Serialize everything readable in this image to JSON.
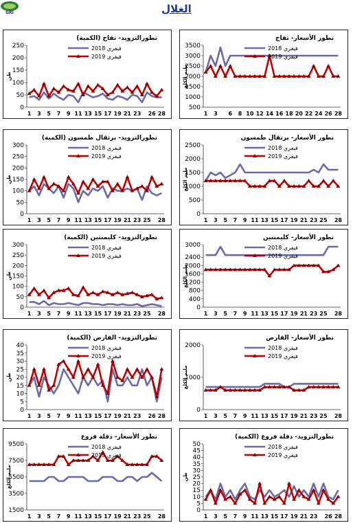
{
  "header": {
    "title": "الغلال",
    "logo_text": "GRI"
  },
  "colors": {
    "s2018": "#6a6aa8",
    "s2019": "#c00000",
    "marker2019": "#8b0000"
  },
  "chart_data": [
    {
      "id": "c1",
      "type": "line",
      "title": "تطورالتزويد- تفاح (الكمية)",
      "ylabel": "طن",
      "ylim": [
        0,
        250
      ],
      "yticks": [
        0,
        50,
        100,
        150,
        200,
        250
      ],
      "x": [
        1,
        2,
        3,
        4,
        5,
        6,
        7,
        8,
        9,
        10,
        11,
        12,
        13,
        14,
        15,
        16,
        17,
        18,
        19,
        20,
        21,
        22,
        23,
        24,
        25,
        26,
        27,
        28
      ],
      "xticks": [
        1,
        3,
        5,
        7,
        9,
        11,
        13,
        15,
        17,
        19,
        21,
        23,
        26,
        28
      ],
      "series": [
        {
          "name": "فيفري 2018",
          "values": [
            40,
            45,
            30,
            60,
            35,
            55,
            40,
            30,
            50,
            45,
            20,
            60,
            50,
            40,
            45,
            55,
            35,
            30,
            45,
            40,
            30,
            50,
            45,
            20,
            60,
            45,
            40,
            40
          ]
        },
        {
          "name": "فيفري 2019",
          "values": [
            55,
            70,
            45,
            95,
            45,
            75,
            60,
            85,
            70,
            65,
            95,
            50,
            85,
            65,
            90,
            75,
            50,
            60,
            90,
            65,
            80,
            60,
            85,
            50,
            95,
            60,
            45,
            70
          ]
        }
      ]
    },
    {
      "id": "c2",
      "type": "line",
      "title": "تطور الأسعار- تفاح",
      "ylabel": "مليم الكلغ",
      "ylim": [
        500,
        3500
      ],
      "yticks": [
        500,
        1000,
        1500,
        2000,
        2500,
        3000,
        3500
      ],
      "x": [
        1,
        2,
        3,
        4,
        5,
        6,
        7,
        8,
        9,
        10,
        11,
        12,
        13,
        14,
        15,
        16,
        17,
        18,
        19,
        20,
        21,
        22,
        23,
        24,
        25,
        26,
        27,
        28
      ],
      "xticks": [
        1,
        3,
        6,
        8,
        10,
        12,
        14,
        16,
        18,
        20,
        22,
        24,
        26,
        28
      ],
      "series": [
        {
          "name": "فيفري 2018",
          "values": [
            2200,
            3000,
            2500,
            3400,
            2500,
            3000,
            3000,
            3000,
            3000,
            3000,
            3000,
            3000,
            3000,
            3000,
            3000,
            3000,
            3000,
            3000,
            3000,
            3000,
            3000,
            3000,
            3000,
            3000,
            3000,
            3000,
            3000,
            3000
          ]
        },
        {
          "name": "فيفري 2019",
          "values": [
            2200,
            2500,
            2000,
            2500,
            2000,
            2500,
            2000,
            2000,
            2000,
            2000,
            2000,
            2000,
            2000,
            3000,
            2000,
            2000,
            2000,
            2000,
            2000,
            2000,
            2000,
            2000,
            2500,
            2000,
            2000,
            2500,
            2000,
            2000
          ]
        }
      ]
    },
    {
      "id": "c3",
      "type": "line",
      "title": "تطورالتزويد- برتقال طمسون (الكمية)",
      "ylabel": "طن",
      "ylim": [
        0,
        300
      ],
      "yticks": [
        0,
        50,
        100,
        150,
        200,
        250,
        300
      ],
      "x": [
        1,
        2,
        3,
        4,
        5,
        6,
        7,
        8,
        9,
        10,
        11,
        12,
        13,
        14,
        15,
        16,
        17,
        18,
        19,
        20,
        21,
        22,
        23,
        24,
        25,
        26,
        27,
        28
      ],
      "xticks": [
        1,
        3,
        5,
        7,
        9,
        11,
        13,
        15,
        17,
        19,
        21,
        23,
        25,
        28
      ],
      "series": [
        {
          "name": "فيفري 2018",
          "values": [
            100,
            120,
            80,
            130,
            110,
            90,
            120,
            70,
            130,
            110,
            50,
            100,
            80,
            110,
            100,
            120,
            70,
            110,
            100,
            100,
            110,
            100,
            110,
            60,
            120,
            90,
            80,
            90
          ]
        },
        {
          "name": "فيفري 2019",
          "values": [
            100,
            150,
            110,
            160,
            110,
            130,
            120,
            100,
            160,
            130,
            90,
            140,
            110,
            150,
            120,
            140,
            140,
            100,
            130,
            100,
            160,
            100,
            110,
            120,
            100,
            160,
            120,
            130
          ]
        }
      ]
    },
    {
      "id": "c4",
      "type": "line",
      "title": "تطور الأسعار- برتقال طمسون",
      "ylabel": "مليم الكلغ",
      "ylim": [
        0,
        2500
      ],
      "yticks": [
        0,
        500,
        1000,
        1500,
        2000,
        2500
      ],
      "x": [
        1,
        2,
        3,
        4,
        5,
        6,
        7,
        8,
        9,
        10,
        11,
        12,
        13,
        14,
        15,
        16,
        17,
        18,
        19,
        20,
        21,
        22,
        23,
        24,
        25,
        26,
        27,
        28
      ],
      "xticks": [
        1,
        3,
        5,
        7,
        9,
        11,
        13,
        15,
        17,
        19,
        21,
        23,
        25,
        28
      ],
      "series": [
        {
          "name": "فيفري 2018",
          "values": [
            1200,
            1500,
            1400,
            1500,
            1300,
            1400,
            1500,
            1800,
            1500,
            1500,
            1500,
            1500,
            1500,
            1500,
            1500,
            1500,
            1500,
            1500,
            1500,
            1500,
            1500,
            1500,
            1600,
            1500,
            1800,
            1600,
            1600,
            1600
          ]
        },
        {
          "name": "فيفري 2019",
          "values": [
            1200,
            1200,
            1200,
            1200,
            1200,
            1200,
            1200,
            1200,
            1200,
            1000,
            1000,
            1000,
            1000,
            1200,
            1200,
            1000,
            1200,
            1000,
            1000,
            1000,
            1000,
            1200,
            1000,
            1000,
            1200,
            1000,
            1200,
            1000
          ]
        }
      ]
    },
    {
      "id": "c5",
      "type": "line",
      "title": "تطورالتزويد- كليمنتين (الكمية)",
      "ylabel": "طن",
      "ylim": [
        0,
        300
      ],
      "yticks": [
        0,
        50,
        100,
        150,
        200,
        250,
        300
      ],
      "x": [
        1,
        2,
        3,
        4,
        5,
        6,
        7,
        8,
        9,
        10,
        11,
        12,
        13,
        14,
        15,
        16,
        17,
        18,
        19,
        20,
        21,
        22,
        23,
        24,
        25,
        26,
        27,
        28
      ],
      "xticks": [
        1,
        3,
        5,
        7,
        9,
        11,
        13,
        15,
        17,
        19,
        21,
        23,
        25,
        28
      ],
      "series": [
        {
          "name": "فيفري 2018",
          "values": [
            25,
            25,
            15,
            30,
            10,
            20,
            15,
            15,
            20,
            15,
            10,
            20,
            20,
            15,
            15,
            10,
            15,
            15,
            10,
            15,
            10,
            10,
            15,
            5,
            10,
            15,
            10,
            5
          ]
        },
        {
          "name": "فيفري 2019",
          "values": [
            60,
            90,
            60,
            80,
            45,
            70,
            80,
            80,
            90,
            60,
            55,
            95,
            60,
            70,
            60,
            75,
            70,
            60,
            70,
            60,
            65,
            70,
            60,
            50,
            55,
            60,
            40,
            45
          ]
        }
      ]
    },
    {
      "id": "c6",
      "type": "line",
      "title": "تطور الأسعار- كليمنتين",
      "ylabel": "مليم الكلغ",
      "ylim": [
        0,
        3000
      ],
      "yticks": [
        0,
        400,
        800,
        1200,
        1600,
        2000,
        2400,
        3000
      ],
      "x": [
        1,
        2,
        3,
        4,
        5,
        6,
        7,
        8,
        9,
        10,
        11,
        12,
        13,
        14,
        15,
        16,
        17,
        18,
        19,
        20,
        21,
        22,
        23,
        24,
        25,
        26,
        27,
        28
      ],
      "xticks": [
        1,
        3,
        5,
        7,
        9,
        11,
        13,
        15,
        17,
        19,
        21,
        23,
        25,
        28
      ],
      "series": [
        {
          "name": "فيفري 2018",
          "values": [
            2500,
            2500,
            2500,
            2900,
            2500,
            2500,
            2500,
            2500,
            2500,
            2500,
            2500,
            2500,
            2500,
            2500,
            2500,
            2500,
            2500,
            2500,
            2500,
            2500,
            2500,
            2500,
            2500,
            2500,
            2500,
            2900,
            2900,
            2900
          ]
        },
        {
          "name": "فيفري 2019",
          "values": [
            1800,
            1800,
            1800,
            1800,
            1800,
            1800,
            1800,
            1800,
            1800,
            1800,
            1800,
            1800,
            1800,
            1500,
            1800,
            1800,
            1800,
            1800,
            2000,
            2000,
            2000,
            2000,
            2000,
            2000,
            1700,
            1700,
            1800,
            2000
          ]
        }
      ]
    },
    {
      "id": "c7",
      "type": "line",
      "title": "تطورالتزويد- القارص (الكمية)",
      "ylabel": "طن",
      "ylim": [
        0,
        40
      ],
      "yticks": [
        0,
        5,
        10,
        15,
        20,
        25,
        30,
        35,
        40
      ],
      "x": [
        1,
        2,
        3,
        4,
        5,
        6,
        7,
        8,
        9,
        10,
        11,
        12,
        13,
        14,
        15,
        16,
        17,
        18,
        19,
        20,
        21,
        22,
        23,
        24,
        25,
        26,
        27,
        28
      ],
      "xticks": [
        1,
        3,
        5,
        7,
        9,
        11,
        13,
        15,
        17,
        19,
        21,
        23,
        26,
        28
      ],
      "series": [
        {
          "name": "فيفري 2018",
          "values": [
            15,
            20,
            8,
            20,
            15,
            10,
            15,
            25,
            20,
            15,
            10,
            20,
            15,
            20,
            15,
            18,
            5,
            25,
            15,
            15,
            20,
            15,
            15,
            25,
            15,
            20,
            5,
            20
          ]
        },
        {
          "name": "فيفري 2019",
          "values": [
            15,
            25,
            15,
            25,
            12,
            15,
            28,
            30,
            25,
            20,
            30,
            20,
            25,
            20,
            28,
            15,
            10,
            30,
            20,
            18,
            25,
            20,
            25,
            20,
            25,
            20,
            8,
            25
          ]
        }
      ]
    },
    {
      "id": "c8",
      "type": "line",
      "title": "تطور الأسعار- القارص",
      "ylabel": "مليم الكلغ",
      "ylim": [
        0,
        2000
      ],
      "yticks": [
        0,
        1000,
        2000
      ],
      "x": [
        1,
        2,
        3,
        4,
        5,
        6,
        7,
        8,
        9,
        10,
        11,
        12,
        13,
        14,
        15,
        16,
        17,
        18,
        19,
        20,
        21,
        22,
        23,
        24,
        25,
        26,
        27,
        28
      ],
      "xticks": [
        1,
        3,
        5,
        7,
        9,
        11,
        13,
        15,
        17,
        19,
        21,
        23,
        25,
        28
      ],
      "series": [
        {
          "name": "فيفري 2018",
          "values": [
            700,
            700,
            700,
            700,
            700,
            700,
            700,
            700,
            700,
            700,
            700,
            700,
            800,
            800,
            800,
            800,
            700,
            700,
            800,
            800,
            800,
            800,
            800,
            800,
            800,
            800,
            800,
            800
          ]
        },
        {
          "name": "فيفري 2019",
          "values": [
            600,
            600,
            600,
            700,
            600,
            600,
            600,
            600,
            600,
            600,
            600,
            600,
            700,
            700,
            700,
            700,
            700,
            700,
            600,
            600,
            600,
            700,
            700,
            700,
            700,
            700,
            700,
            700
          ]
        }
      ]
    },
    {
      "id": "c9",
      "type": "line",
      "title": "تطور الأسعار- دقلة فروع",
      "ylabel": "مليم الكلغ",
      "ylim": [
        1500,
        9500
      ],
      "yticks": [
        1500,
        3500,
        5500,
        7500,
        9500
      ],
      "x": [
        1,
        2,
        3,
        4,
        5,
        6,
        7,
        8,
        9,
        10,
        11,
        12,
        13,
        14,
        15,
        16,
        17,
        18,
        19,
        20,
        21,
        22,
        23,
        24,
        25,
        26,
        27,
        28
      ],
      "xticks": [
        1,
        3,
        5,
        7,
        9,
        11,
        13,
        15,
        17,
        19,
        21,
        23,
        25,
        28
      ],
      "series": [
        {
          "name": "فيفري 2018",
          "values": [
            5000,
            5000,
            5000,
            5000,
            5500,
            5500,
            5000,
            5000,
            5500,
            5500,
            5500,
            5500,
            5000,
            5000,
            5000,
            5500,
            5500,
            5500,
            5000,
            5000,
            5500,
            5500,
            5000,
            5500,
            5500,
            6000,
            5500,
            5000
          ]
        },
        {
          "name": "فيفري 2019",
          "values": [
            7000,
            7000,
            7000,
            7000,
            7000,
            7000,
            8000,
            8000,
            7000,
            7500,
            7500,
            7500,
            7500,
            8000,
            7500,
            8500,
            7500,
            7500,
            8000,
            7500,
            7000,
            7000,
            7000,
            7000,
            7000,
            8000,
            8000,
            7500
          ]
        }
      ]
    },
    {
      "id": "c10",
      "type": "line",
      "title": "تطورالتزويد- دقلة فروع (الكمية)",
      "ylabel": "طن",
      "ylim": [
        0,
        50
      ],
      "yticks": [
        0,
        5,
        10,
        15,
        20,
        25,
        30,
        35,
        40,
        45,
        50
      ],
      "x": [
        1,
        2,
        3,
        4,
        5,
        6,
        7,
        8,
        9,
        10,
        11,
        12,
        13,
        14,
        15,
        16,
        17,
        18,
        19,
        20,
        21,
        22,
        23,
        24,
        25,
        26,
        27,
        28
      ],
      "xticks": [
        1,
        3,
        5,
        7,
        9,
        11,
        13,
        15,
        17,
        19,
        21,
        23,
        26,
        28
      ],
      "series": [
        {
          "name": "فيفري 2018",
          "values": [
            10,
            15,
            8,
            20,
            10,
            15,
            8,
            15,
            20,
            10,
            8,
            15,
            10,
            15,
            10,
            12,
            15,
            10,
            18,
            10,
            15,
            10,
            20,
            10,
            20,
            10,
            8,
            15
          ]
        },
        {
          "name": "فيفري 2019",
          "values": [
            8,
            15,
            5,
            15,
            8,
            10,
            5,
            12,
            15,
            8,
            5,
            20,
            5,
            10,
            8,
            10,
            5,
            20,
            8,
            15,
            10,
            8,
            15,
            5,
            15,
            8,
            5,
            10
          ]
        }
      ]
    }
  ]
}
